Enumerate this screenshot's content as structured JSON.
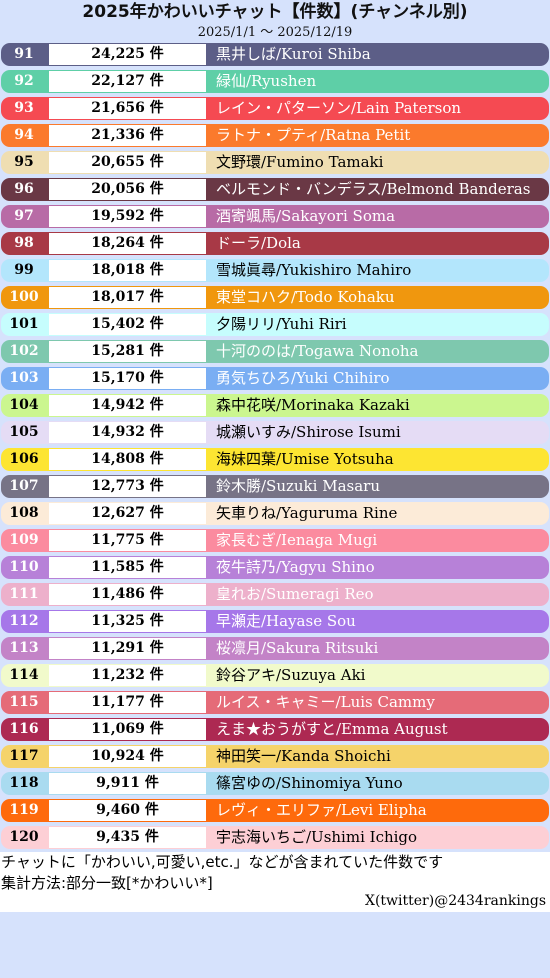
{
  "header": {
    "title": "2025年かわいいチャット【件数】(チャンネル別)",
    "subtitle": "2025/1/1 〜 2025/12/19"
  },
  "chart_data": {
    "type": "table",
    "title": "2025年かわいいチャット【件数】(チャンネル別)",
    "subtitle": "2025/1/1 〜 2025/12/19",
    "columns": [
      "rank",
      "count",
      "name"
    ],
    "unit": "件",
    "rows": [
      {
        "rank": "91",
        "count": 24225,
        "count_label": "24,225 件",
        "name": "黒井しば/Kuroi Shiba",
        "color": "#5c5e87",
        "text_color": "#ffffff"
      },
      {
        "rank": "92",
        "count": 22127,
        "count_label": "22,127 件",
        "name": "緑仙/Ryushen",
        "color": "#5ecfa7",
        "text_color": "#ffffff"
      },
      {
        "rank": "93",
        "count": 21656,
        "count_label": "21,656 件",
        "name": "レイン・パターソン/Lain Paterson",
        "color": "#f54a52",
        "text_color": "#ffffff"
      },
      {
        "rank": "94",
        "count": 21336,
        "count_label": "21,336 件",
        "name": "ラトナ・プティ/Ratna Petit",
        "color": "#fb7a2c",
        "text_color": "#ffffff"
      },
      {
        "rank": "95",
        "count": 20655,
        "count_label": "20,655 件",
        "name": "文野環/Fumino Tamaki",
        "color": "#efdeb2",
        "text_color": "#000000"
      },
      {
        "rank": "96",
        "count": 20056,
        "count_label": "20,056 件",
        "name": "ベルモンド・バンデラス/Belmond Banderas",
        "color": "#6a3845",
        "text_color": "#ffffff"
      },
      {
        "rank": "97",
        "count": 19592,
        "count_label": "19,592 件",
        "name": "酒寄颯馬/Sakayori Soma",
        "color": "#b86ba6",
        "text_color": "#ffffff"
      },
      {
        "rank": "98",
        "count": 18264,
        "count_label": "18,264 件",
        "name": "ドーラ/Dola",
        "color": "#a83946",
        "text_color": "#ffffff"
      },
      {
        "rank": "99",
        "count": 18018,
        "count_label": "18,018 件",
        "name": "雪城眞尋/Yukishiro Mahiro",
        "color": "#b3e6fc",
        "text_color": "#000000"
      },
      {
        "rank": "100",
        "count": 18017,
        "count_label": "18,017 件",
        "name": "東堂コハク/Todo Kohaku",
        "color": "#f0970e",
        "text_color": "#ffffff"
      },
      {
        "rank": "101",
        "count": 15402,
        "count_label": "15,402 件",
        "name": "夕陽リリ/Yuhi Riri",
        "color": "#c6fdfd",
        "text_color": "#000000"
      },
      {
        "rank": "102",
        "count": 15281,
        "count_label": "15,281 件",
        "name": "十河ののは/Togawa Nonoha",
        "color": "#7ec8ae",
        "text_color": "#ffffff"
      },
      {
        "rank": "103",
        "count": 15170,
        "count_label": "15,170 件",
        "name": "勇気ちひろ/Yuki Chihiro",
        "color": "#7aaef3",
        "text_color": "#ffffff"
      },
      {
        "rank": "104",
        "count": 14942,
        "count_label": "14,942 件",
        "name": "森中花咲/Morinaka Kazaki",
        "color": "#cbf68f",
        "text_color": "#000000"
      },
      {
        "rank": "105",
        "count": 14932,
        "count_label": "14,932 件",
        "name": "城瀬いすみ/Shirose Isumi",
        "color": "#e5dcf5",
        "text_color": "#000000"
      },
      {
        "rank": "106",
        "count": 14808,
        "count_label": "14,808 件",
        "name": "海妹四葉/Umise Yotsuha",
        "color": "#fde532",
        "text_color": "#000000"
      },
      {
        "rank": "107",
        "count": 12773,
        "count_label": "12,773 件",
        "name": "鈴木勝/Suzuki Masaru",
        "color": "#777386",
        "text_color": "#ffffff"
      },
      {
        "rank": "108",
        "count": 12627,
        "count_label": "12,627 件",
        "name": "矢車りね/Yaguruma Rine",
        "color": "#fcebd8",
        "text_color": "#000000"
      },
      {
        "rank": "109",
        "count": 11775,
        "count_label": "11,775 件",
        "name": "家長むぎ/Ienaga Mugi",
        "color": "#fb8b9f",
        "text_color": "#ffffff"
      },
      {
        "rank": "110",
        "count": 11585,
        "count_label": "11,585 件",
        "name": "夜牛詩乃/Yagyu Shino",
        "color": "#b781d8",
        "text_color": "#ffffff"
      },
      {
        "rank": "111",
        "count": 11486,
        "count_label": "11,486 件",
        "name": "皇れお/Sumeragi Reo",
        "color": "#edb0cb",
        "text_color": "#ffffff"
      },
      {
        "rank": "112",
        "count": 11325,
        "count_label": "11,325 件",
        "name": "早瀬走/Hayase Sou",
        "color": "#a677e9",
        "text_color": "#ffffff"
      },
      {
        "rank": "113",
        "count": 11291,
        "count_label": "11,291 件",
        "name": "桜凛月/Sakura Ritsuki",
        "color": "#c383c7",
        "text_color": "#ffffff"
      },
      {
        "rank": "114",
        "count": 11232,
        "count_label": "11,232 件",
        "name": "鈴谷アキ/Suzuya Aki",
        "color": "#f1facb",
        "text_color": "#000000"
      },
      {
        "rank": "115",
        "count": 11177,
        "count_label": "11,177 件",
        "name": "ルイス・キャミー/Luis Cammy",
        "color": "#e56b78",
        "text_color": "#ffffff"
      },
      {
        "rank": "116",
        "count": 11069,
        "count_label": "11,069 件",
        "name": "えま★おうがすと/Emma August",
        "color": "#ad2952",
        "text_color": "#ffffff"
      },
      {
        "rank": "117",
        "count": 10924,
        "count_label": "10,924 件",
        "name": "神田笑一/Kanda Shoichi",
        "color": "#f5d36a",
        "text_color": "#000000"
      },
      {
        "rank": "118",
        "count": 9911,
        "count_label": "9,911 件",
        "name": "篠宮ゆの/Shinomiya Yuno",
        "color": "#a9dbf0",
        "text_color": "#000000"
      },
      {
        "rank": "119",
        "count": 9460,
        "count_label": "9,460 件",
        "name": "レヴィ・エリファ/Levi Elipha",
        "color": "#fe6a0c",
        "text_color": "#ffffff"
      },
      {
        "rank": "120",
        "count": 9435,
        "count_label": "9,435 件",
        "name": "宇志海いちご/Ushimi Ichigo",
        "color": "#fdcfd5",
        "text_color": "#000000"
      }
    ]
  },
  "footer": {
    "note1": "チャットに「かわいい,可愛い,etc.」などが含まれていた件数です",
    "note2": "集計方法:部分一致[*かわいい*]",
    "credit": "X(twitter)@2434rankings"
  },
  "colors": {
    "background": "#d6e2fc",
    "count_box": "#ffffff"
  }
}
